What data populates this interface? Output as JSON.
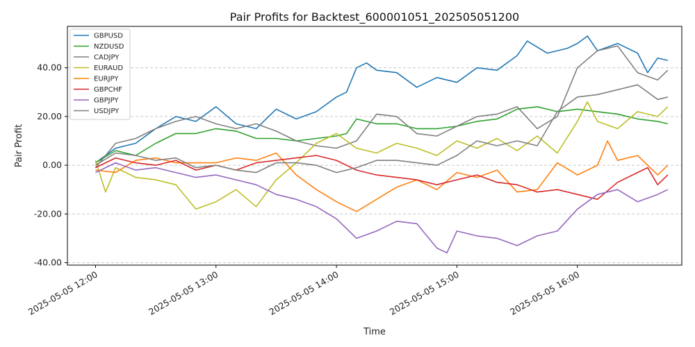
{
  "chart_data": {
    "type": "line",
    "title": "Pair Profits for Backtest_600001051_202505051200",
    "xlabel": "Time",
    "ylabel": "Pair Profit",
    "x_range": [
      "2025-05-05 11:46",
      "2025-05-05 16:52"
    ],
    "ylim": [
      -41,
      57
    ],
    "y_ticks": [
      -40,
      -20,
      0,
      20,
      40
    ],
    "y_tick_labels": [
      "-40.00",
      "-20.00",
      "0.00",
      "20.00",
      "40.00"
    ],
    "x_ticks": [
      "2025-05-05 12:00",
      "2025-05-05 13:00",
      "2025-05-05 14:00",
      "2025-05-05 15:00",
      "2025-05-05 16:00"
    ],
    "x_tick_labels": [
      "2025-05-05 12:00",
      "2025-05-05 13:00",
      "2025-05-05 14:00",
      "2025-05-05 15:00",
      "2025-05-05 16:00"
    ],
    "grid": "y-dashed",
    "legend_position": "top-left",
    "series": [
      {
        "name": "GBPUSD",
        "color": "#1f77b4",
        "points": [
          [
            "2025-05-05 12:00",
            1
          ],
          [
            "2025-05-05 12:10",
            7
          ],
          [
            "2025-05-05 12:20",
            9
          ],
          [
            "2025-05-05 12:30",
            15
          ],
          [
            "2025-05-05 12:40",
            20
          ],
          [
            "2025-05-05 12:50",
            18
          ],
          [
            "2025-05-05 13:00",
            24
          ],
          [
            "2025-05-05 13:10",
            17
          ],
          [
            "2025-05-05 13:20",
            15
          ],
          [
            "2025-05-05 13:30",
            23
          ],
          [
            "2025-05-05 13:40",
            19
          ],
          [
            "2025-05-05 13:50",
            22
          ],
          [
            "2025-05-05 14:00",
            28
          ],
          [
            "2025-05-05 14:05",
            30
          ],
          [
            "2025-05-05 14:10",
            40
          ],
          [
            "2025-05-05 14:15",
            42
          ],
          [
            "2025-05-05 14:20",
            39
          ],
          [
            "2025-05-05 14:30",
            38
          ],
          [
            "2025-05-05 14:40",
            32
          ],
          [
            "2025-05-05 14:50",
            36
          ],
          [
            "2025-05-05 15:00",
            34
          ],
          [
            "2025-05-05 15:10",
            40
          ],
          [
            "2025-05-05 15:20",
            39
          ],
          [
            "2025-05-05 15:30",
            45
          ],
          [
            "2025-05-05 15:35",
            51
          ],
          [
            "2025-05-05 15:45",
            46
          ],
          [
            "2025-05-05 15:55",
            48
          ],
          [
            "2025-05-05 16:00",
            50
          ],
          [
            "2025-05-05 16:05",
            53
          ],
          [
            "2025-05-05 16:10",
            47
          ],
          [
            "2025-05-05 16:20",
            50
          ],
          [
            "2025-05-05 16:30",
            46
          ],
          [
            "2025-05-05 16:35",
            38
          ],
          [
            "2025-05-05 16:40",
            44
          ],
          [
            "2025-05-05 16:45",
            43
          ]
        ]
      },
      {
        "name": "NZDUSD",
        "color": "#2ca02c",
        "points": [
          [
            "2025-05-05 12:00",
            1
          ],
          [
            "2025-05-05 12:10",
            6
          ],
          [
            "2025-05-05 12:20",
            4
          ],
          [
            "2025-05-05 12:30",
            9
          ],
          [
            "2025-05-05 12:40",
            13
          ],
          [
            "2025-05-05 12:50",
            13
          ],
          [
            "2025-05-05 13:00",
            15
          ],
          [
            "2025-05-05 13:10",
            14
          ],
          [
            "2025-05-05 13:20",
            11
          ],
          [
            "2025-05-05 13:30",
            11
          ],
          [
            "2025-05-05 13:40",
            10
          ],
          [
            "2025-05-05 13:50",
            11
          ],
          [
            "2025-05-05 14:00",
            12
          ],
          [
            "2025-05-05 14:05",
            13
          ],
          [
            "2025-05-05 14:10",
            19
          ],
          [
            "2025-05-05 14:20",
            17
          ],
          [
            "2025-05-05 14:30",
            17
          ],
          [
            "2025-05-05 14:40",
            15
          ],
          [
            "2025-05-05 14:50",
            15
          ],
          [
            "2025-05-05 15:00",
            16
          ],
          [
            "2025-05-05 15:10",
            18
          ],
          [
            "2025-05-05 15:20",
            19
          ],
          [
            "2025-05-05 15:30",
            23
          ],
          [
            "2025-05-05 15:40",
            24
          ],
          [
            "2025-05-05 15:50",
            22
          ],
          [
            "2025-05-05 16:00",
            23
          ],
          [
            "2025-05-05 16:10",
            22
          ],
          [
            "2025-05-05 16:20",
            21
          ],
          [
            "2025-05-05 16:30",
            19
          ],
          [
            "2025-05-05 16:40",
            18
          ],
          [
            "2025-05-05 16:45",
            17
          ]
        ]
      },
      {
        "name": "CADJPY",
        "color": "#7f7f7f",
        "points": [
          [
            "2025-05-05 12:00",
            -1
          ],
          [
            "2025-05-05 12:10",
            9
          ],
          [
            "2025-05-05 12:20",
            11
          ],
          [
            "2025-05-05 12:30",
            15
          ],
          [
            "2025-05-05 12:40",
            18
          ],
          [
            "2025-05-05 12:50",
            20
          ],
          [
            "2025-05-05 13:00",
            17
          ],
          [
            "2025-05-05 13:10",
            15
          ],
          [
            "2025-05-05 13:20",
            17
          ],
          [
            "2025-05-05 13:30",
            14
          ],
          [
            "2025-05-05 13:40",
            10
          ],
          [
            "2025-05-05 13:50",
            8
          ],
          [
            "2025-05-05 14:00",
            7
          ],
          [
            "2025-05-05 14:10",
            10
          ],
          [
            "2025-05-05 14:20",
            21
          ],
          [
            "2025-05-05 14:30",
            20
          ],
          [
            "2025-05-05 14:40",
            13
          ],
          [
            "2025-05-05 14:50",
            12
          ],
          [
            "2025-05-05 15:00",
            16
          ],
          [
            "2025-05-05 15:10",
            20
          ],
          [
            "2025-05-05 15:20",
            21
          ],
          [
            "2025-05-05 15:30",
            24
          ],
          [
            "2025-05-05 15:40",
            15
          ],
          [
            "2025-05-05 15:50",
            20
          ],
          [
            "2025-05-05 16:00",
            40
          ],
          [
            "2025-05-05 16:10",
            47
          ],
          [
            "2025-05-05 16:20",
            49
          ],
          [
            "2025-05-05 16:30",
            38
          ],
          [
            "2025-05-05 16:40",
            35
          ],
          [
            "2025-05-05 16:45",
            39
          ]
        ]
      },
      {
        "name": "EURAUD",
        "color": "#bcbd22",
        "points": [
          [
            "2025-05-05 12:00",
            2
          ],
          [
            "2025-05-05 12:05",
            -11
          ],
          [
            "2025-05-05 12:10",
            -1
          ],
          [
            "2025-05-05 12:20",
            -5
          ],
          [
            "2025-05-05 12:30",
            -6
          ],
          [
            "2025-05-05 12:40",
            -8
          ],
          [
            "2025-05-05 12:50",
            -18
          ],
          [
            "2025-05-05 13:00",
            -15
          ],
          [
            "2025-05-05 13:10",
            -10
          ],
          [
            "2025-05-05 13:20",
            -17
          ],
          [
            "2025-05-05 13:30",
            -6
          ],
          [
            "2025-05-05 13:40",
            1
          ],
          [
            "2025-05-05 13:50",
            9
          ],
          [
            "2025-05-05 14:00",
            13
          ],
          [
            "2025-05-05 14:10",
            7
          ],
          [
            "2025-05-05 14:20",
            5
          ],
          [
            "2025-05-05 14:30",
            9
          ],
          [
            "2025-05-05 14:40",
            7
          ],
          [
            "2025-05-05 14:50",
            4
          ],
          [
            "2025-05-05 15:00",
            10
          ],
          [
            "2025-05-05 15:10",
            7
          ],
          [
            "2025-05-05 15:20",
            11
          ],
          [
            "2025-05-05 15:30",
            6
          ],
          [
            "2025-05-05 15:40",
            12
          ],
          [
            "2025-05-05 15:50",
            5
          ],
          [
            "2025-05-05 16:00",
            18
          ],
          [
            "2025-05-05 16:05",
            26
          ],
          [
            "2025-05-05 16:10",
            18
          ],
          [
            "2025-05-05 16:20",
            15
          ],
          [
            "2025-05-05 16:30",
            22
          ],
          [
            "2025-05-05 16:40",
            20
          ],
          [
            "2025-05-05 16:45",
            24
          ]
        ]
      },
      {
        "name": "EURJPY",
        "color": "#ff7f0e",
        "points": [
          [
            "2025-05-05 12:00",
            -2
          ],
          [
            "2025-05-05 12:10",
            -3
          ],
          [
            "2025-05-05 12:20",
            2
          ],
          [
            "2025-05-05 12:30",
            3
          ],
          [
            "2025-05-05 12:40",
            1
          ],
          [
            "2025-05-05 12:50",
            1
          ],
          [
            "2025-05-05 13:00",
            1
          ],
          [
            "2025-05-05 13:10",
            3
          ],
          [
            "2025-05-05 13:20",
            2
          ],
          [
            "2025-05-05 13:30",
            5
          ],
          [
            "2025-05-05 13:40",
            -4
          ],
          [
            "2025-05-05 13:50",
            -10
          ],
          [
            "2025-05-05 14:00",
            -15
          ],
          [
            "2025-05-05 14:10",
            -19
          ],
          [
            "2025-05-05 14:20",
            -14
          ],
          [
            "2025-05-05 14:30",
            -9
          ],
          [
            "2025-05-05 14:40",
            -6
          ],
          [
            "2025-05-05 14:50",
            -10
          ],
          [
            "2025-05-05 15:00",
            -3
          ],
          [
            "2025-05-05 15:10",
            -5
          ],
          [
            "2025-05-05 15:20",
            -2
          ],
          [
            "2025-05-05 15:30",
            -11
          ],
          [
            "2025-05-05 15:40",
            -10
          ],
          [
            "2025-05-05 15:50",
            1
          ],
          [
            "2025-05-05 16:00",
            -4
          ],
          [
            "2025-05-05 16:10",
            0
          ],
          [
            "2025-05-05 16:15",
            10
          ],
          [
            "2025-05-05 16:20",
            2
          ],
          [
            "2025-05-05 16:30",
            4
          ],
          [
            "2025-05-05 16:40",
            -4
          ],
          [
            "2025-05-05 16:45",
            0
          ]
        ]
      },
      {
        "name": "GBPCHF",
        "color": "#d62728",
        "points": [
          [
            "2025-05-05 12:00",
            -1
          ],
          [
            "2025-05-05 12:10",
            3
          ],
          [
            "2025-05-05 12:20",
            1
          ],
          [
            "2025-05-05 12:30",
            0
          ],
          [
            "2025-05-05 12:40",
            2
          ],
          [
            "2025-05-05 12:50",
            -2
          ],
          [
            "2025-05-05 13:00",
            0
          ],
          [
            "2025-05-05 13:10",
            -2
          ],
          [
            "2025-05-05 13:20",
            1
          ],
          [
            "2025-05-05 13:30",
            2
          ],
          [
            "2025-05-05 13:40",
            3
          ],
          [
            "2025-05-05 13:50",
            4
          ],
          [
            "2025-05-05 14:00",
            2
          ],
          [
            "2025-05-05 14:10",
            -2
          ],
          [
            "2025-05-05 14:20",
            -4
          ],
          [
            "2025-05-05 14:30",
            -5
          ],
          [
            "2025-05-05 14:40",
            -6
          ],
          [
            "2025-05-05 14:50",
            -8
          ],
          [
            "2025-05-05 15:00",
            -6
          ],
          [
            "2025-05-05 15:10",
            -4
          ],
          [
            "2025-05-05 15:20",
            -7
          ],
          [
            "2025-05-05 15:30",
            -8
          ],
          [
            "2025-05-05 15:40",
            -11
          ],
          [
            "2025-05-05 15:50",
            -10
          ],
          [
            "2025-05-05 16:00",
            -12
          ],
          [
            "2025-05-05 16:10",
            -14
          ],
          [
            "2025-05-05 16:20",
            -7
          ],
          [
            "2025-05-05 16:30",
            -3
          ],
          [
            "2025-05-05 16:35",
            -1
          ],
          [
            "2025-05-05 16:40",
            -8
          ],
          [
            "2025-05-05 16:45",
            -4
          ]
        ]
      },
      {
        "name": "GBPJPY",
        "color": "#9467bd",
        "points": [
          [
            "2025-05-05 12:00",
            -3
          ],
          [
            "2025-05-05 12:10",
            1
          ],
          [
            "2025-05-05 12:20",
            -2
          ],
          [
            "2025-05-05 12:30",
            -1
          ],
          [
            "2025-05-05 12:40",
            -3
          ],
          [
            "2025-05-05 12:50",
            -5
          ],
          [
            "2025-05-05 13:00",
            -4
          ],
          [
            "2025-05-05 13:10",
            -6
          ],
          [
            "2025-05-05 13:20",
            -8
          ],
          [
            "2025-05-05 13:30",
            -12
          ],
          [
            "2025-05-05 13:40",
            -14
          ],
          [
            "2025-05-05 13:50",
            -17
          ],
          [
            "2025-05-05 14:00",
            -22
          ],
          [
            "2025-05-05 14:10",
            -30
          ],
          [
            "2025-05-05 14:20",
            -27
          ],
          [
            "2025-05-05 14:30",
            -23
          ],
          [
            "2025-05-05 14:40",
            -24
          ],
          [
            "2025-05-05 14:50",
            -34
          ],
          [
            "2025-05-05 14:55",
            -36
          ],
          [
            "2025-05-05 15:00",
            -27
          ],
          [
            "2025-05-05 15:10",
            -29
          ],
          [
            "2025-05-05 15:20",
            -30
          ],
          [
            "2025-05-05 15:30",
            -33
          ],
          [
            "2025-05-05 15:40",
            -29
          ],
          [
            "2025-05-05 15:50",
            -27
          ],
          [
            "2025-05-05 16:00",
            -18
          ],
          [
            "2025-05-05 16:10",
            -12
          ],
          [
            "2025-05-05 16:20",
            -10
          ],
          [
            "2025-05-05 16:30",
            -15
          ],
          [
            "2025-05-05 16:40",
            -12
          ],
          [
            "2025-05-05 16:45",
            -10
          ]
        ]
      },
      {
        "name": "USDJPY",
        "color": "#7f7f7f",
        "points": [
          [
            "2025-05-05 12:00",
            0
          ],
          [
            "2025-05-05 12:10",
            5
          ],
          [
            "2025-05-05 12:20",
            4
          ],
          [
            "2025-05-05 12:30",
            2
          ],
          [
            "2025-05-05 12:40",
            3
          ],
          [
            "2025-05-05 12:50",
            -1
          ],
          [
            "2025-05-05 13:00",
            0
          ],
          [
            "2025-05-05 13:10",
            -2
          ],
          [
            "2025-05-05 13:20",
            -3
          ],
          [
            "2025-05-05 13:30",
            1
          ],
          [
            "2025-05-05 13:40",
            1
          ],
          [
            "2025-05-05 13:50",
            0
          ],
          [
            "2025-05-05 14:00",
            -3
          ],
          [
            "2025-05-05 14:10",
            -1
          ],
          [
            "2025-05-05 14:20",
            2
          ],
          [
            "2025-05-05 14:30",
            2
          ],
          [
            "2025-05-05 14:40",
            1
          ],
          [
            "2025-05-05 14:50",
            0
          ],
          [
            "2025-05-05 15:00",
            4
          ],
          [
            "2025-05-05 15:10",
            10
          ],
          [
            "2025-05-05 15:20",
            8
          ],
          [
            "2025-05-05 15:30",
            10
          ],
          [
            "2025-05-05 15:40",
            8
          ],
          [
            "2025-05-05 15:50",
            22
          ],
          [
            "2025-05-05 16:00",
            28
          ],
          [
            "2025-05-05 16:10",
            29
          ],
          [
            "2025-05-05 16:20",
            31
          ],
          [
            "2025-05-05 16:30",
            33
          ],
          [
            "2025-05-05 16:40",
            27
          ],
          [
            "2025-05-05 16:45",
            28
          ]
        ]
      }
    ]
  }
}
